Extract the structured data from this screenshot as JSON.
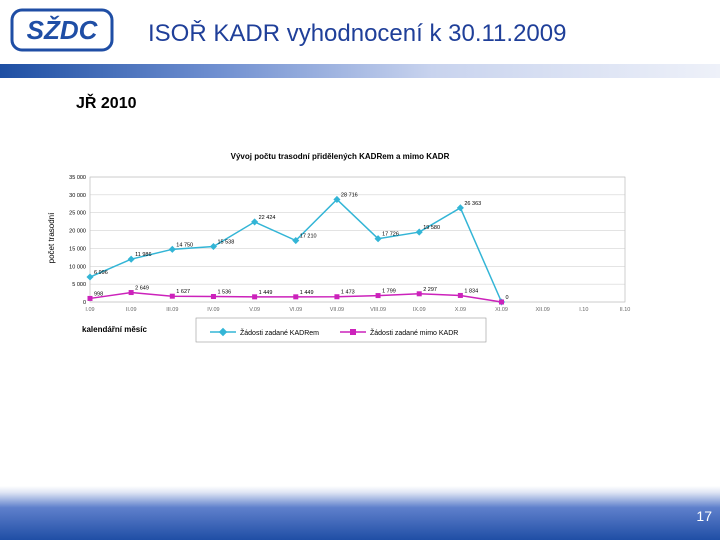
{
  "header": {
    "logo_text": "SŽDC",
    "title": "ISOŘ KADR vyhodnocení k 30.11.2009"
  },
  "section_title": "JŘ 2010",
  "slide_number": "17",
  "colors": {
    "brand_blue": "#1f4ea5",
    "series_kadr": "#33b5d6",
    "series_mimo": "#cc22bb"
  },
  "chart_data": {
    "type": "line",
    "title": "Vývoj počtu trasodní přidělených KADRem a mimo KADR",
    "xlabel": "kalendářní měsíc",
    "ylabel": "počet trasodní",
    "ylim": [
      0,
      35000
    ],
    "yticks": [
      "0",
      "5 000",
      "10 000",
      "15 000",
      "20 000",
      "25 000",
      "30 000",
      "35 000"
    ],
    "categories": [
      "I.09",
      "II.09",
      "III.09",
      "IV.09",
      "V.09",
      "VI.09",
      "VII.09",
      "VIII.09",
      "IX.09",
      "X.09",
      "XI.09",
      "XII.09",
      "I.10",
      "II.10"
    ],
    "legend_position": "bottom",
    "series": [
      {
        "name": "Žádosti zadané KADRem",
        "values": [
          6996,
          11986,
          14750,
          15538,
          22424,
          17210,
          28716,
          17726,
          19580,
          26363,
          0,
          null,
          null,
          null
        ],
        "labels": [
          "6 996",
          "11 986",
          "14 750",
          "15 538",
          "22 424",
          "17 210",
          "28 716",
          "17 726",
          "19 580",
          "26 363",
          "",
          "",
          "",
          ""
        ]
      },
      {
        "name": "Žádosti zadané mimo KADR",
        "values": [
          998,
          2649,
          1627,
          1536,
          1449,
          1449,
          1473,
          1799,
          2297,
          1834,
          0,
          null,
          null,
          null
        ],
        "labels": [
          "998",
          "2 649",
          "1 627",
          "1 536",
          "1 449",
          "1 449",
          "1 473",
          "1 799",
          "2 297",
          "1 834",
          "0",
          "",
          "",
          ""
        ]
      }
    ]
  }
}
